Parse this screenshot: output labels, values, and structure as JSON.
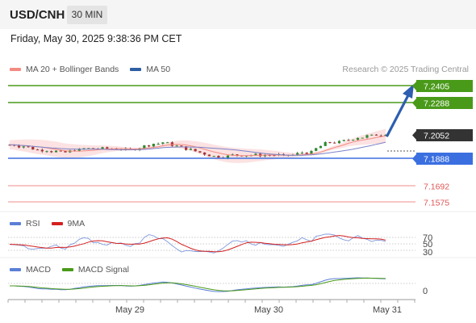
{
  "header": {
    "symbol": "USD/CNH",
    "timeframe": "30 MIN",
    "datetime": "Friday, May 30, 2025 9:38:36 PM CET"
  },
  "price_legend": {
    "items": [
      {
        "label": "MA 20 + Bollinger Bands",
        "color": "#f28b82"
      },
      {
        "label": "MA 50",
        "color": "#2e5fa3"
      }
    ],
    "credit": "Research © 2025 Trading Central"
  },
  "price_levels": [
    {
      "value": "7.2405",
      "kind": "resistance",
      "color": "#4a9a1a"
    },
    {
      "value": "7.2288",
      "kind": "resistance",
      "color": "#4a9a1a"
    },
    {
      "value": "7.2052",
      "kind": "last",
      "color": "#333333"
    },
    {
      "value": "7.1888",
      "kind": "pivot",
      "color": "#3b6fe0"
    },
    {
      "value": "7.1692",
      "kind": "support",
      "color": "#e05555"
    },
    {
      "value": "7.1575",
      "kind": "support",
      "color": "#e05555"
    }
  ],
  "rsi_panel": {
    "legend": [
      {
        "label": "RSI",
        "color": "#5b7fd6"
      },
      {
        "label": "9MA",
        "color": "#d42020"
      }
    ],
    "levels": [
      "70",
      "50",
      "30"
    ]
  },
  "macd_panel": {
    "legend": [
      {
        "label": "MACD",
        "color": "#5b7fd6"
      },
      {
        "label": "MACD Signal",
        "color": "#4a9a1a"
      }
    ],
    "zero_label": "0"
  },
  "x_axis": {
    "labels": [
      "May 29",
      "May 30",
      "May 31"
    ]
  },
  "chart_data": {
    "type": "line",
    "title": "",
    "y_range": [
      7.15,
      7.245
    ],
    "candles_close": [
      7.196,
      7.196,
      7.195,
      7.195,
      7.194,
      7.193,
      7.192,
      7.192,
      7.192,
      7.191,
      7.191,
      7.19,
      7.19,
      7.191,
      7.192,
      7.192,
      7.193,
      7.193,
      7.193,
      7.193,
      7.193,
      7.193,
      7.193,
      7.193,
      7.193,
      7.192,
      7.192,
      7.193,
      7.194,
      7.195,
      7.196,
      7.197,
      7.197,
      7.198,
      7.197,
      7.196,
      7.195,
      7.194,
      7.193,
      7.192,
      7.191,
      7.19,
      7.189,
      7.188,
      7.187,
      7.187,
      7.187,
      7.187,
      7.188,
      7.188,
      7.188,
      7.188,
      7.188,
      7.188,
      7.188,
      7.188,
      7.188,
      7.188,
      7.188,
      7.187,
      7.188,
      7.188,
      7.189,
      7.19,
      7.19,
      7.19,
      7.193,
      7.195,
      7.197,
      7.198,
      7.198,
      7.198,
      7.199,
      7.2,
      7.201,
      7.202,
      7.202,
      7.203,
      7.203,
      7.204,
      7.204,
      7.205
    ],
    "target_arrow": {
      "from": 7.2052,
      "to": 7.2405
    }
  }
}
